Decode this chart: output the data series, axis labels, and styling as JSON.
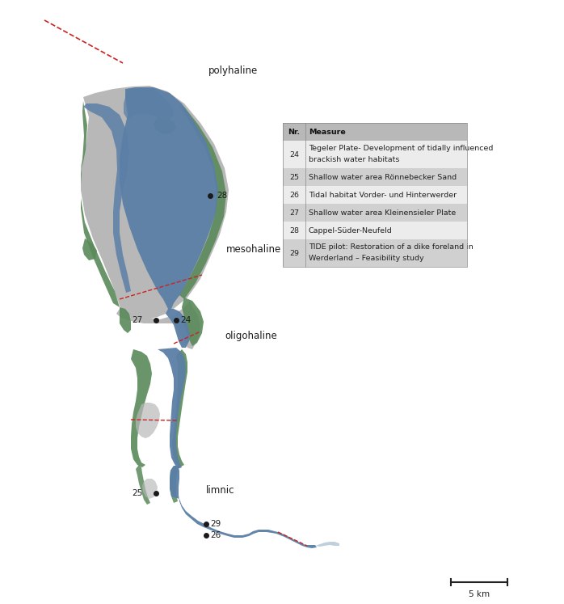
{
  "background_color": "#ffffff",
  "table_data": [
    {
      "nr": "Nr.",
      "measure": "Measure",
      "header": true
    },
    {
      "nr": "24",
      "measure": "Tegeler Plate- Development of tidally influenced\nbrackish water habitats",
      "header": false,
      "shaded": false
    },
    {
      "nr": "25",
      "measure": "Shallow water area Rönnebecker Sand",
      "header": false,
      "shaded": true
    },
    {
      "nr": "26",
      "measure": "Tidal habitat Vorder- und Hinterwerder",
      "header": false,
      "shaded": false
    },
    {
      "nr": "27",
      "measure": "Shallow water area Kleinensieler Plate",
      "header": false,
      "shaded": true
    },
    {
      "nr": "28",
      "measure": "Cappel-Süder-Neufeld",
      "header": false,
      "shaded": false
    },
    {
      "nr": "29",
      "measure": "TIDE pilot: Restoration of a dike foreland in\nWerderland – Feasibility study",
      "header": false,
      "shaded": true
    }
  ],
  "color_gray": "#b8b8b8",
  "color_blue": "#5b7fa6",
  "color_green": "#5a8a5a",
  "color_red": "#cc2222",
  "color_lightblue": "#aec6d8"
}
